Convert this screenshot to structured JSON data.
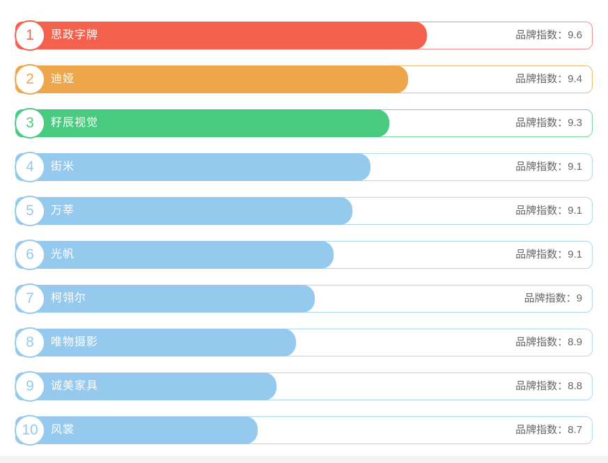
{
  "page": {
    "background": "#ffffff",
    "footer_strip_color": "#f4f4f4"
  },
  "index_label_prefix": "品牌指数：",
  "rows": [
    {
      "rank": "1",
      "name": "思政字牌",
      "index_value": "9.6",
      "index_label": "品牌指数：9.6",
      "bar_color": "#f4614d",
      "border_color": "#f09084",
      "bar_percent": 71.5
    },
    {
      "rank": "2",
      "name": "迪娅",
      "index_value": "9.4",
      "index_label": "品牌指数：9.4",
      "bar_color": "#eda64c",
      "border_color": "#f0bb6f",
      "bar_percent": 68.2
    },
    {
      "rank": "3",
      "name": "籽辰视觉",
      "index_value": "9.3",
      "index_label": "品牌指数：9.3",
      "bar_color": "#49cb7f",
      "border_color": "#76d6a0",
      "bar_percent": 64.9
    },
    {
      "rank": "4",
      "name": "街米",
      "index_value": "9.1",
      "index_label": "品牌指数：9.1",
      "bar_color": "#95c9ed",
      "border_color": "#aed7f1",
      "bar_percent": 61.7
    },
    {
      "rank": "5",
      "name": "万莘",
      "index_value": "9.1",
      "index_label": "品牌指数：9.1",
      "bar_color": "#95c9ed",
      "border_color": "#aed7f1",
      "bar_percent": 58.5
    },
    {
      "rank": "6",
      "name": "光帆",
      "index_value": "9.1",
      "index_label": "品牌指数：9.1",
      "bar_color": "#95c9ed",
      "border_color": "#aed7f1",
      "bar_percent": 55.3
    },
    {
      "rank": "7",
      "name": "柯翎尔",
      "index_value": "9",
      "index_label": "品牌指数：9",
      "bar_color": "#95c9ed",
      "border_color": "#aed7f1",
      "bar_percent": 52.0
    },
    {
      "rank": "8",
      "name": "唯物摄影",
      "index_value": "8.9",
      "index_label": "品牌指数：8.9",
      "bar_color": "#95c9ed",
      "border_color": "#aed7f1",
      "bar_percent": 48.7
    },
    {
      "rank": "9",
      "name": "诚美家具",
      "index_value": "8.8",
      "index_label": "品牌指数：8.8",
      "bar_color": "#95c9ed",
      "border_color": "#aed7f1",
      "bar_percent": 45.3
    },
    {
      "rank": "10",
      "name": "风裳",
      "index_value": "8.7",
      "index_label": "品牌指数：8.7",
      "bar_color": "#95c9ed",
      "border_color": "#aed7f1",
      "bar_percent": 42.1
    }
  ],
  "chart_data": {
    "type": "bar",
    "orientation": "horizontal",
    "title": "",
    "categories": [
      "思政字牌",
      "迪娅",
      "籽辰视觉",
      "街米",
      "万莘",
      "光帆",
      "柯翎尔",
      "唯物摄影",
      "诚美家具",
      "风裳"
    ],
    "values": [
      9.6,
      9.4,
      9.3,
      9.1,
      9.1,
      9.1,
      9,
      8.9,
      8.8,
      8.7
    ],
    "ranks": [
      1,
      2,
      3,
      4,
      5,
      6,
      7,
      8,
      9,
      10
    ],
    "value_label_prefix": "品牌指数：",
    "bar_percent_of_track": [
      71.5,
      68.2,
      64.9,
      61.7,
      58.5,
      55.3,
      52.0,
      48.7,
      45.3,
      42.1
    ],
    "bar_colors": [
      "#f4614d",
      "#eda64c",
      "#49cb7f",
      "#95c9ed",
      "#95c9ed",
      "#95c9ed",
      "#95c9ed",
      "#95c9ed",
      "#95c9ed",
      "#95c9ed"
    ],
    "grid": false,
    "legend": false
  }
}
